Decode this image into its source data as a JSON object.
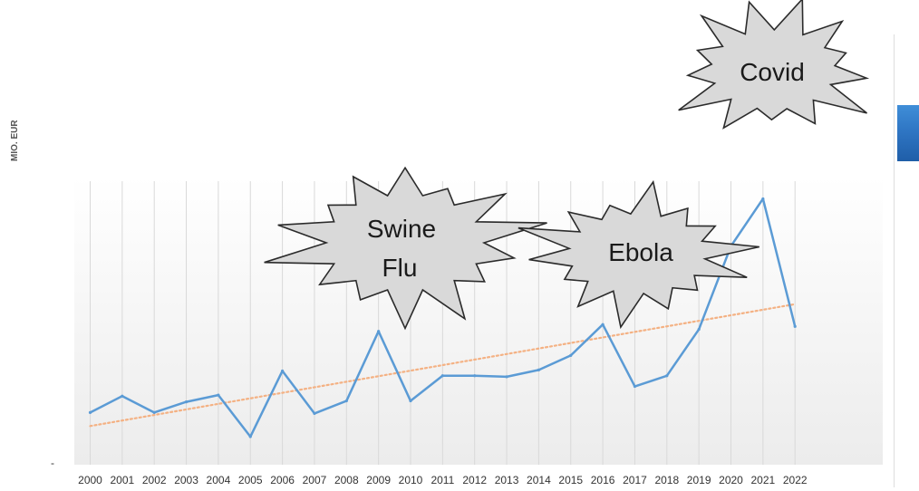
{
  "chart_data": {
    "type": "line",
    "ylabel": "MIO. EUR",
    "y_zero_tick": "-",
    "x": [
      "2000",
      "2001",
      "2002",
      "2003",
      "2004",
      "2005",
      "2006",
      "2007",
      "2008",
      "2009",
      "2010",
      "2011",
      "2012",
      "2013",
      "2014",
      "2015",
      "2016",
      "2017",
      "2018",
      "2019",
      "2020",
      "2021",
      "2022"
    ],
    "series": [
      {
        "values": [
          14,
          31,
          14,
          25,
          32,
          -11,
          57,
          13,
          26,
          98,
          26,
          52,
          52,
          51,
          58,
          73,
          105,
          41,
          52,
          100,
          186,
          235,
          103
        ]
      }
    ],
    "trendline": {
      "start": 0,
      "end": 126,
      "style": "dotted"
    },
    "ylim": [
      -40,
      240
    ],
    "grid": "vertical",
    "annotations": [
      {
        "text": [
          "Swine",
          "Flu"
        ],
        "year": "2009"
      },
      {
        "text": [
          "Ebola"
        ],
        "year": "2016"
      },
      {
        "text": [
          "Covid"
        ],
        "year": "2021"
      }
    ],
    "colors": {
      "series": "#5b9bd5",
      "trend": "#f4b183",
      "burst_fill": "#d9d9d9",
      "burst_stroke": "#2b2b2b",
      "grid": "#d9d9d9",
      "tab": "#2f76c4"
    }
  }
}
